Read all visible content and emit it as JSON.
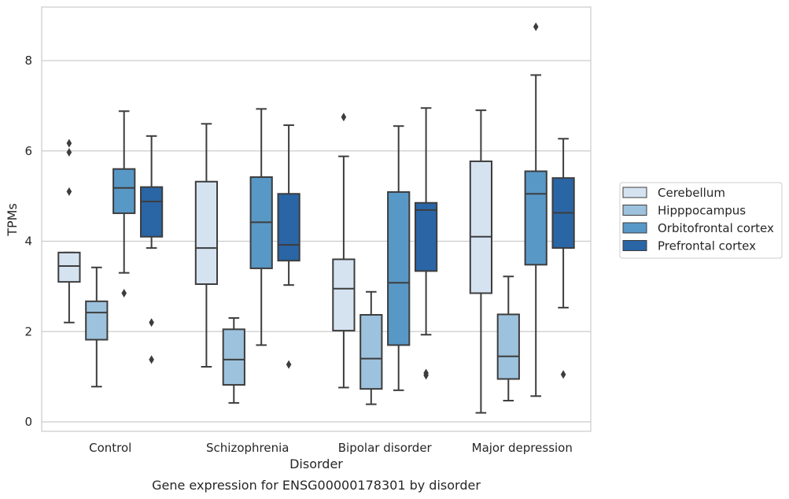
{
  "caption": "Gene expression for ENSG00000178301 by disorder",
  "chart_data": {
    "type": "box",
    "xlabel": "Disorder",
    "ylabel": "TPMs",
    "ylim": [
      -0.2,
      9.2
    ],
    "yticks": [
      0,
      2,
      4,
      6,
      8
    ],
    "grid": "horizontal",
    "legend_placement": "right",
    "categories": [
      "Control",
      "Schizophrenia",
      "Bipolar disorder",
      "Major depression"
    ],
    "series": [
      {
        "name": "Cerebellum",
        "color": "#d5e3f1",
        "boxes": [
          {
            "whislo": 2.2,
            "q1": 3.1,
            "med": 3.45,
            "q3": 3.75,
            "whishi": 3.75,
            "fliers": [
              6.17,
              5.97,
              5.1
            ]
          },
          {
            "whislo": 1.22,
            "q1": 3.05,
            "med": 3.85,
            "q3": 5.32,
            "whishi": 6.6,
            "fliers": []
          },
          {
            "whislo": 0.76,
            "q1": 2.02,
            "med": 2.95,
            "q3": 3.6,
            "whishi": 5.88,
            "fliers": [
              6.75
            ]
          },
          {
            "whislo": 0.2,
            "q1": 2.85,
            "med": 4.1,
            "q3": 5.77,
            "whishi": 6.9,
            "fliers": []
          }
        ]
      },
      {
        "name": "Hipppocampus",
        "color": "#9dc2dd",
        "boxes": [
          {
            "whislo": 0.78,
            "q1": 1.82,
            "med": 2.42,
            "q3": 2.67,
            "whishi": 3.42,
            "fliers": []
          },
          {
            "whislo": 0.42,
            "q1": 0.82,
            "med": 1.38,
            "q3": 2.05,
            "whishi": 2.3,
            "fliers": []
          },
          {
            "whislo": 0.39,
            "q1": 0.73,
            "med": 1.4,
            "q3": 2.37,
            "whishi": 2.88,
            "fliers": []
          },
          {
            "whislo": 0.47,
            "q1": 0.95,
            "med": 1.45,
            "q3": 2.38,
            "whishi": 3.22,
            "fliers": []
          }
        ]
      },
      {
        "name": "Orbitofrontal cortex",
        "color": "#5898c6",
        "boxes": [
          {
            "whislo": 3.3,
            "q1": 4.62,
            "med": 5.18,
            "q3": 5.6,
            "whishi": 6.88,
            "fliers": [
              2.85
            ]
          },
          {
            "whislo": 1.7,
            "q1": 3.4,
            "med": 4.42,
            "q3": 5.42,
            "whishi": 6.93,
            "fliers": []
          },
          {
            "whislo": 0.7,
            "q1": 1.7,
            "med": 3.08,
            "q3": 5.09,
            "whishi": 6.55,
            "fliers": []
          },
          {
            "whislo": 0.57,
            "q1": 3.48,
            "med": 5.05,
            "q3": 5.55,
            "whishi": 7.68,
            "fliers": [
              8.75
            ]
          }
        ]
      },
      {
        "name": "Prefrontal cortex",
        "color": "#2a65a6",
        "boxes": [
          {
            "whislo": 3.85,
            "q1": 4.1,
            "med": 4.88,
            "q3": 5.2,
            "whishi": 6.33,
            "fliers": [
              2.2,
              1.38
            ]
          },
          {
            "whislo": 3.03,
            "q1": 3.57,
            "med": 3.92,
            "q3": 5.05,
            "whishi": 6.57,
            "fliers": [
              1.27
            ]
          },
          {
            "whislo": 1.93,
            "q1": 3.34,
            "med": 4.69,
            "q3": 4.85,
            "whishi": 6.95,
            "fliers": [
              1.03,
              1.08
            ]
          },
          {
            "whislo": 2.53,
            "q1": 3.85,
            "med": 4.63,
            "q3": 5.4,
            "whishi": 6.27,
            "fliers": [
              1.05
            ]
          }
        ]
      }
    ]
  }
}
